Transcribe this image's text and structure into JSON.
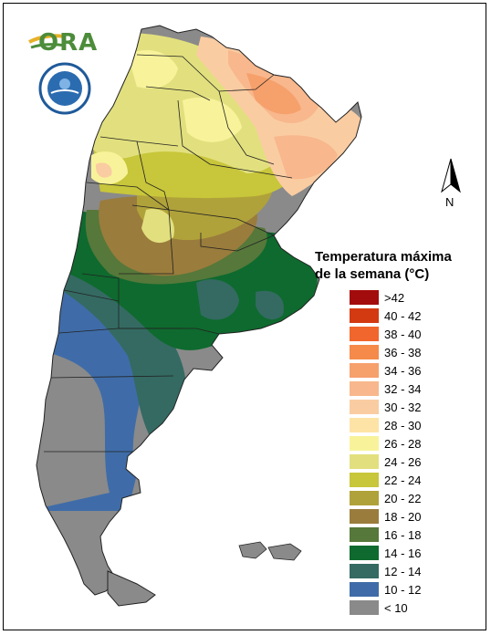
{
  "logo": {
    "text": "ORA",
    "icon": "ora-logo-icon"
  },
  "seal": {
    "icon": "smn-seal-icon"
  },
  "north": {
    "label": "N",
    "icon": "north-arrow-icon"
  },
  "legend": {
    "title_line1": "Temperatura máxima",
    "title_line2": "de la semana (°C)",
    "items": [
      {
        "label": ">42",
        "color": "#a30c0c"
      },
      {
        "label": "40 - 42",
        "color": "#d33a12"
      },
      {
        "label": "38 - 40",
        "color": "#f0662c"
      },
      {
        "label": "36 - 38",
        "color": "#f58a4a"
      },
      {
        "label": "34 - 36",
        "color": "#f6a06c"
      },
      {
        "label": "32 - 34",
        "color": "#f8b78c"
      },
      {
        "label": "30 - 32",
        "color": "#facca2"
      },
      {
        "label": "28 - 30",
        "color": "#fde4a6"
      },
      {
        "label": "26 - 28",
        "color": "#f8f39a"
      },
      {
        "label": "24 - 26",
        "color": "#e2e07e"
      },
      {
        "label": "22 - 24",
        "color": "#c8c63a"
      },
      {
        "label": "20 - 22",
        "color": "#b0a23a"
      },
      {
        "label": "18 - 20",
        "color": "#9a7c3c"
      },
      {
        "label": "16 - 18",
        "color": "#56783a"
      },
      {
        "label": "14 - 16",
        "color": "#0e6a2e"
      },
      {
        "label": "12 - 14",
        "color": "#346a62"
      },
      {
        "label": "10 - 12",
        "color": "#3f6ca8"
      },
      {
        "label": "< 10",
        "color": "#8a8a8a"
      }
    ]
  }
}
